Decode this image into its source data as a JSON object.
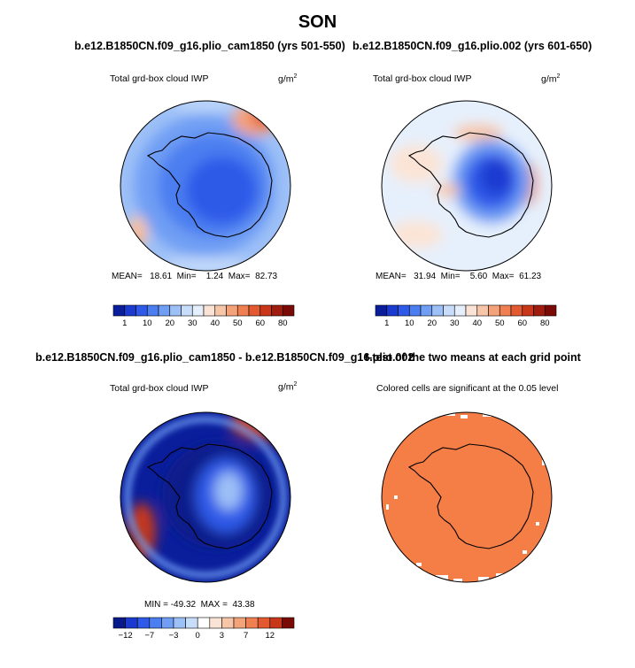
{
  "title": "SON",
  "panels": {
    "top_left": {
      "case": "b.e12.B1850CN.f09_g16.plio_cam1850 (yrs 501-550)",
      "variable": "Total grd-box cloud IWP",
      "units_base": "g/m",
      "units_exp": "2",
      "stats": {
        "mean_label": "MEAN=",
        "mean": "18.61",
        "min_label": "Min=",
        "min": "1.24",
        "max_label": "Max=",
        "max": "82.73"
      },
      "colorbar_labels": [
        "1",
        "10",
        "20",
        "30",
        "40",
        "50",
        "60",
        "80"
      ]
    },
    "top_right": {
      "case": "b.e12.B1850CN.f09_g16.plio.002 (yrs 601-650)",
      "variable": "Total grd-box cloud IWP",
      "units_base": "g/m",
      "units_exp": "2",
      "stats": {
        "mean_label": "MEAN=",
        "mean": "31.94",
        "min_label": "Min=",
        "min": "5.60",
        "max_label": "Max=",
        "max": "61.23"
      },
      "colorbar_labels": [
        "1",
        "10",
        "20",
        "30",
        "40",
        "50",
        "60",
        "80"
      ]
    },
    "bottom_left": {
      "case": "b.e12.B1850CN.f09_g16.plio_cam1850 - b.e12.B1850CN.f09_g16.plio.002",
      "variable": "Total grd-box cloud IWP",
      "units_base": "g/m",
      "units_exp": "2",
      "stats_line": "MIN = -49.32  MAX =  43.38",
      "colorbar_labels": [
        "−12",
        "−7",
        "−3",
        "0",
        "3",
        "7",
        "12"
      ]
    },
    "bottom_right": {
      "case": "t-test of the two means at each grid point",
      "note": "Colored cells are significant at the 0.05 level"
    }
  },
  "colors": {
    "abs_scale": [
      "#0a1e9c",
      "#1a3ad0",
      "#2f5ae8",
      "#4b7ef0",
      "#6f9ef4",
      "#9dc0f7",
      "#c8ddfa",
      "#e6f0fc",
      "#fbe4d6",
      "#f7c6a8",
      "#f4a27a",
      "#f07f52",
      "#e35a30",
      "#c8371a",
      "#a01c0e",
      "#7a0a05"
    ],
    "diff_scale": [
      "#081a8a",
      "#1a3ad0",
      "#2f5ae8",
      "#4b7ef0",
      "#6f9ef4",
      "#9dc0f7",
      "#c8ddfa",
      "#ffffff",
      "#fbe4d6",
      "#f7c6a8",
      "#f4a27a",
      "#f07f52",
      "#e35a30",
      "#c8371a",
      "#7a0a05"
    ],
    "significance": "#f57e47"
  }
}
